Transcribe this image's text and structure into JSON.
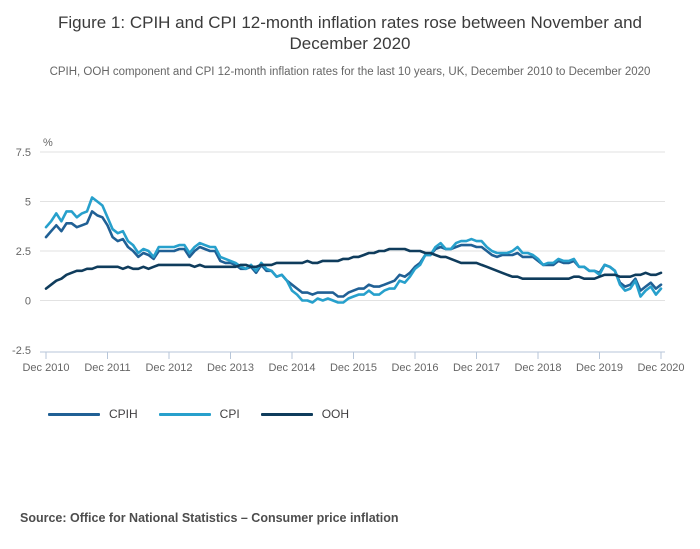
{
  "figure": {
    "title": "Figure 1: CPIH and CPI 12-month inflation rates rose between November and December 2020",
    "subtitle": "CPIH, OOH component and CPI 12-month inflation rates for the last 10 years, UK, December 2010 to December 2020",
    "source": "Source: Office for National Statistics – Consumer price inflation"
  },
  "chart_data": {
    "type": "line",
    "title": "Figure 1: CPIH and CPI 12-month inflation rates rose between November and December 2020",
    "subtitle": "CPIH, OOH component and CPI 12-month inflation rates for the last 10 years, UK, December 2010 to December 2020",
    "unit": "%",
    "frequency": "monthly",
    "x_start": "Dec 2010",
    "x_end": "Dec 2020",
    "x_tick_labels": [
      "Dec 2010",
      "Dec 2011",
      "Dec 2012",
      "Dec 2013",
      "Dec 2014",
      "Dec 2015",
      "Dec 2016",
      "Dec 2017",
      "Dec 2018",
      "Dec 2019",
      "Dec 2020"
    ],
    "y_ticks": [
      7.5,
      5,
      2.5,
      0,
      -2.5
    ],
    "y_tick_labels": [
      "7.5",
      "5",
      "2.5",
      "0",
      "-2.5"
    ],
    "ylim": [
      -2.5,
      7.5
    ],
    "grid": "horizontal",
    "legend_position": "bottom-left",
    "axis_color": "#b7c6d9",
    "gridline_color": "#e2e2e2",
    "tick_text_color": "#666666",
    "series": [
      {
        "name": "CPIH",
        "color": "#206095",
        "values": [
          3.2,
          3.5,
          3.8,
          3.5,
          3.9,
          3.9,
          3.7,
          3.8,
          3.9,
          4.5,
          4.3,
          4.2,
          3.8,
          3.2,
          3.0,
          3.1,
          2.7,
          2.5,
          2.2,
          2.4,
          2.3,
          2.1,
          2.5,
          2.5,
          2.5,
          2.5,
          2.6,
          2.6,
          2.2,
          2.5,
          2.7,
          2.6,
          2.5,
          2.5,
          2.0,
          1.9,
          1.9,
          1.8,
          1.6,
          1.6,
          1.7,
          1.4,
          1.8,
          1.5,
          1.5,
          1.2,
          1.3,
          1.0,
          0.8,
          0.6,
          0.4,
          0.4,
          0.3,
          0.4,
          0.4,
          0.4,
          0.4,
          0.2,
          0.2,
          0.4,
          0.5,
          0.6,
          0.6,
          0.8,
          0.7,
          0.7,
          0.8,
          0.9,
          1.0,
          1.3,
          1.2,
          1.4,
          1.7,
          1.9,
          2.3,
          2.3,
          2.6,
          2.7,
          2.6,
          2.6,
          2.7,
          2.8,
          2.8,
          2.8,
          2.7,
          2.7,
          2.5,
          2.3,
          2.2,
          2.3,
          2.3,
          2.3,
          2.4,
          2.2,
          2.2,
          2.2,
          2.0,
          1.8,
          1.8,
          1.8,
          2.0,
          1.9,
          1.9,
          2.0,
          1.7,
          1.7,
          1.5,
          1.5,
          1.4,
          1.8,
          1.7,
          1.5,
          0.9,
          0.7,
          0.8,
          1.1,
          0.5,
          0.7,
          0.9,
          0.6,
          0.8
        ]
      },
      {
        "name": "CPI",
        "color": "#27a0cc",
        "values": [
          3.7,
          4.0,
          4.4,
          4.0,
          4.5,
          4.5,
          4.2,
          4.4,
          4.5,
          5.2,
          5.0,
          4.8,
          4.2,
          3.6,
          3.4,
          3.5,
          3.0,
          2.8,
          2.4,
          2.6,
          2.5,
          2.2,
          2.7,
          2.7,
          2.7,
          2.7,
          2.8,
          2.8,
          2.4,
          2.7,
          2.9,
          2.8,
          2.7,
          2.7,
          2.2,
          2.1,
          2.0,
          1.9,
          1.7,
          1.6,
          1.8,
          1.5,
          1.9,
          1.6,
          1.5,
          1.2,
          1.3,
          1.0,
          0.5,
          0.3,
          0.0,
          0.0,
          -0.1,
          0.1,
          0.0,
          0.1,
          0.0,
          -0.1,
          -0.1,
          0.1,
          0.2,
          0.3,
          0.3,
          0.5,
          0.3,
          0.3,
          0.5,
          0.6,
          0.6,
          1.0,
          0.9,
          1.2,
          1.6,
          1.8,
          2.3,
          2.3,
          2.7,
          2.9,
          2.6,
          2.6,
          2.9,
          3.0,
          3.0,
          3.1,
          3.0,
          3.0,
          2.7,
          2.5,
          2.4,
          2.4,
          2.4,
          2.5,
          2.7,
          2.4,
          2.4,
          2.3,
          2.1,
          1.8,
          1.9,
          1.9,
          2.1,
          2.0,
          2.0,
          2.1,
          1.7,
          1.7,
          1.5,
          1.5,
          1.3,
          1.8,
          1.7,
          1.5,
          0.8,
          0.5,
          0.6,
          1.0,
          0.2,
          0.5,
          0.7,
          0.3,
          0.6
        ]
      },
      {
        "name": "OOH",
        "color": "#0f3c5c",
        "values": [
          0.6,
          0.8,
          1.0,
          1.1,
          1.3,
          1.4,
          1.5,
          1.5,
          1.6,
          1.6,
          1.7,
          1.7,
          1.7,
          1.7,
          1.7,
          1.6,
          1.7,
          1.6,
          1.6,
          1.7,
          1.6,
          1.7,
          1.8,
          1.8,
          1.8,
          1.8,
          1.8,
          1.8,
          1.8,
          1.7,
          1.8,
          1.7,
          1.7,
          1.7,
          1.7,
          1.7,
          1.7,
          1.7,
          1.8,
          1.8,
          1.7,
          1.7,
          1.8,
          1.8,
          1.8,
          1.9,
          1.9,
          1.9,
          1.9,
          1.9,
          1.9,
          2.0,
          1.9,
          1.9,
          2.0,
          2.0,
          2.0,
          2.0,
          2.1,
          2.1,
          2.2,
          2.2,
          2.3,
          2.4,
          2.4,
          2.5,
          2.5,
          2.6,
          2.6,
          2.6,
          2.6,
          2.5,
          2.5,
          2.5,
          2.4,
          2.4,
          2.3,
          2.2,
          2.2,
          2.1,
          2.0,
          1.9,
          1.9,
          1.9,
          1.9,
          1.8,
          1.7,
          1.6,
          1.5,
          1.4,
          1.3,
          1.2,
          1.2,
          1.1,
          1.1,
          1.1,
          1.1,
          1.1,
          1.1,
          1.1,
          1.1,
          1.1,
          1.1,
          1.2,
          1.2,
          1.1,
          1.1,
          1.1,
          1.2,
          1.3,
          1.3,
          1.3,
          1.2,
          1.2,
          1.2,
          1.3,
          1.3,
          1.4,
          1.3,
          1.3,
          1.4
        ]
      }
    ]
  }
}
